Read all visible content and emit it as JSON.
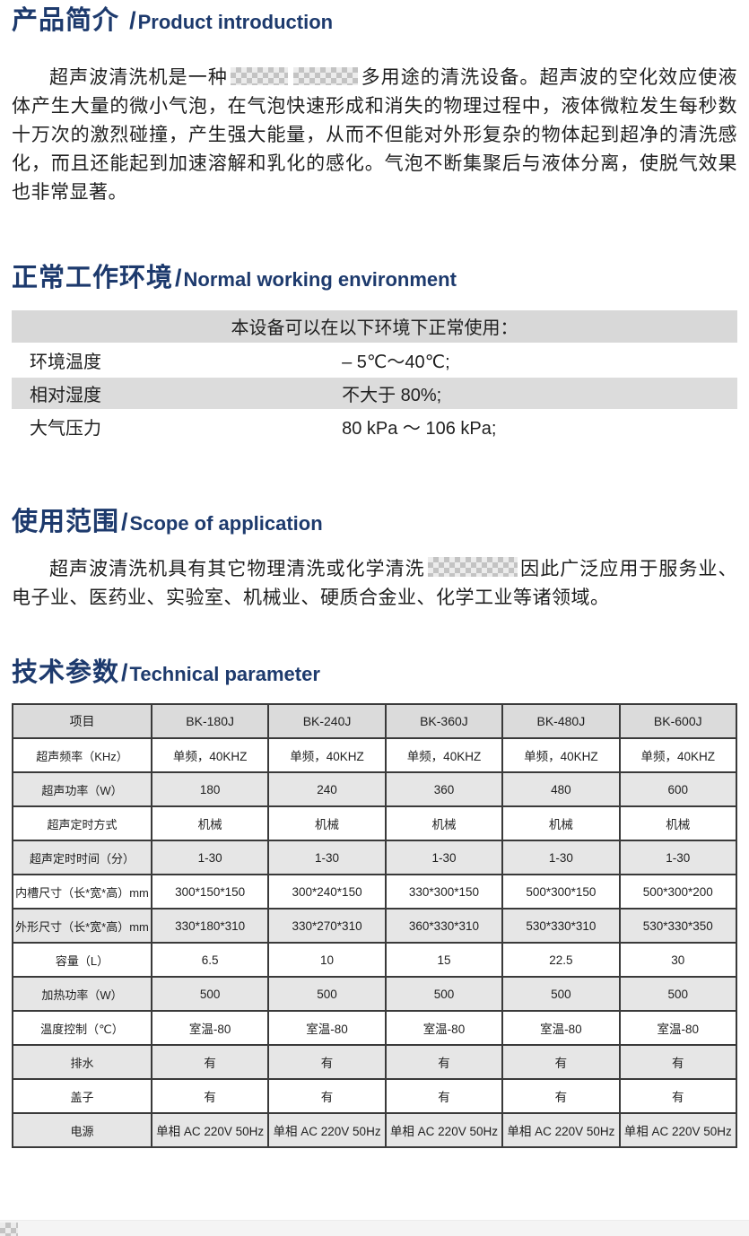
{
  "intro": {
    "title_zh": "产品简介 ",
    "slash": "/",
    "title_en": "Product introduction",
    "para_start": "超声波清洗机是一种",
    "para_end": "多用途的清洗设备。超声波的空化效应使液体产生大量的微小气泡，在气泡快速形成和消失的物理过程中，液体微粒发生每秒数十万次的激烈碰撞，产生强大能量，从而不但能对外形复杂的物体起到超净的清洗感化，而且还能起到加速溶解和乳化的感化。气泡不断集聚后与液体分离，使脱气效果也非常显著。"
  },
  "environment": {
    "title_zh": "正常工作环境",
    "slash": "/",
    "title_en": "Normal working environment",
    "table": {
      "header": "本设备可以在以下环境下正常使用：",
      "rows": [
        {
          "label": "环境温度",
          "value": "– 5℃～40℃;"
        },
        {
          "label": "相对湿度",
          "value": "不大于 80%;"
        },
        {
          "label": "大气压力",
          "value": "80 kPa ～ 106 kPa;"
        }
      ]
    }
  },
  "scope": {
    "title_zh": "使用范围",
    "slash": "/",
    "title_en": "Scope of application",
    "para_start": "超声波清洗机具有其它物理清洗或化学清洗",
    "para_end": "因此广泛应用于服务业、电子业、医药业、实验室、机械业、硬质合金业、化学工业等诸领域。"
  },
  "parameters": {
    "title_zh": "技术参数",
    "slash": "/",
    "title_en": "Technical parameter",
    "table": {
      "columns": [
        "项目",
        "BK-180J",
        "BK-240J",
        "BK-360J",
        "BK-480J",
        "BK-600J"
      ],
      "rows": [
        {
          "label": "超声频率（KHz）",
          "values": [
            "单频，40KHZ",
            "单频，40KHZ",
            "单频，40KHZ",
            "单频，40KHZ",
            "单频，40KHZ"
          ]
        },
        {
          "label": "超声功率（W）",
          "values": [
            "180",
            "240",
            "360",
            "480",
            "600"
          ]
        },
        {
          "label": "超声定时方式",
          "values": [
            "机械",
            "机械",
            "机械",
            "机械",
            "机械"
          ]
        },
        {
          "label": "超声定时时间（分）",
          "values": [
            "1-30",
            "1-30",
            "1-30",
            "1-30",
            "1-30"
          ]
        },
        {
          "label": "内槽尺寸（长*宽*高）mm",
          "values": [
            "300*150*150",
            "300*240*150",
            "330*300*150",
            "500*300*150",
            "500*300*200"
          ]
        },
        {
          "label": "外形尺寸（长*宽*高）mm",
          "values": [
            "330*180*310",
            "330*270*310",
            "360*330*310",
            "530*330*310",
            "530*330*350"
          ]
        },
        {
          "label": "容量（L）",
          "values": [
            "6.5",
            "10",
            "15",
            "22.5",
            "30"
          ]
        },
        {
          "label": "加热功率（W）",
          "values": [
            "500",
            "500",
            "500",
            "500",
            "500"
          ]
        },
        {
          "label": "温度控制（℃）",
          "values": [
            "室温-80",
            "室温-80",
            "室温-80",
            "室温-80",
            "室温-80"
          ]
        },
        {
          "label": "排水",
          "values": [
            "有",
            "有",
            "有",
            "有",
            "有"
          ]
        },
        {
          "label": "盖子",
          "values": [
            "有",
            "有",
            "有",
            "有",
            "有"
          ]
        },
        {
          "label": "电源",
          "values": [
            "单相 AC 220V 50Hz",
            "单相 AC 220V 50Hz",
            "单相 AC 220V 50Hz",
            "单相 AC 220V 50Hz",
            "单相 AC 220V 50Hz"
          ]
        }
      ]
    }
  },
  "theme": {
    "accent": "#1d3a6d",
    "row_gray": "#e6e6e6",
    "header_gray": "#d8d8d8",
    "footer_bg": "#f4f4f4"
  }
}
